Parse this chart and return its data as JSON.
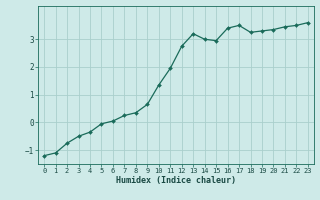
{
  "xlabel": "Humidex (Indice chaleur)",
  "ylabel": "",
  "x_values": [
    0,
    1,
    2,
    3,
    4,
    5,
    6,
    7,
    8,
    9,
    10,
    11,
    12,
    13,
    14,
    15,
    16,
    17,
    18,
    19,
    20,
    21,
    22,
    23
  ],
  "y_values": [
    -1.2,
    -1.1,
    -0.75,
    -0.5,
    -0.35,
    -0.05,
    0.05,
    0.25,
    0.35,
    0.65,
    1.35,
    1.95,
    2.75,
    3.2,
    3.0,
    2.95,
    3.4,
    3.5,
    3.25,
    3.3,
    3.35,
    3.45,
    3.5,
    3.6
  ],
  "line_color": "#1a6b5a",
  "marker": "D",
  "marker_size": 2,
  "line_width": 0.9,
  "background_color": "#ceeae8",
  "grid_color": "#aacfcc",
  "tick_color": "#1a6b5a",
  "label_color": "#1a4a44",
  "ylim": [
    -1.5,
    4.2
  ],
  "xlim": [
    -0.5,
    23.5
  ],
  "yticks": [
    -1,
    0,
    1,
    2,
    3
  ],
  "xticks": [
    0,
    1,
    2,
    3,
    4,
    5,
    6,
    7,
    8,
    9,
    10,
    11,
    12,
    13,
    14,
    15,
    16,
    17,
    18,
    19,
    20,
    21,
    22,
    23
  ],
  "tick_fontsize": 5.0,
  "xlabel_fontsize": 6.0,
  "ylabel_fontsize": 5.5
}
